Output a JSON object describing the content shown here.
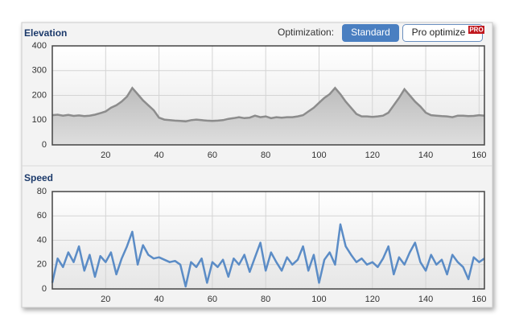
{
  "controls": {
    "label": "Optimization:",
    "standard": "Standard",
    "pro": "Pro optimize",
    "badge": "PRO"
  },
  "chart_data": [
    {
      "type": "area",
      "title": "Elevation",
      "color": "#8c8c8c",
      "fill": "#c4c4c4",
      "x": [
        0,
        2,
        4,
        6,
        8,
        10,
        12,
        14,
        16,
        18,
        20,
        22,
        24,
        26,
        28,
        30,
        32,
        34,
        36,
        38,
        40,
        42,
        44,
        46,
        48,
        50,
        52,
        54,
        56,
        58,
        60,
        62,
        64,
        66,
        68,
        70,
        72,
        74,
        76,
        78,
        80,
        82,
        84,
        86,
        88,
        90,
        92,
        94,
        96,
        98,
        100,
        102,
        104,
        106,
        108,
        110,
        112,
        114,
        116,
        118,
        120,
        122,
        124,
        126,
        128,
        130,
        132,
        134,
        136,
        138,
        140,
        142,
        144,
        146,
        148,
        150,
        152,
        154,
        156,
        158,
        160,
        162
      ],
      "values": [
        120,
        122,
        118,
        121,
        117,
        119,
        116,
        118,
        122,
        128,
        135,
        150,
        160,
        175,
        195,
        230,
        205,
        180,
        160,
        140,
        110,
        102,
        100,
        98,
        97,
        95,
        100,
        102,
        100,
        98,
        97,
        98,
        100,
        105,
        108,
        112,
        108,
        110,
        118,
        112,
        115,
        108,
        112,
        110,
        112,
        112,
        115,
        120,
        135,
        150,
        170,
        190,
        205,
        230,
        205,
        175,
        150,
        125,
        115,
        115,
        113,
        115,
        118,
        130,
        160,
        190,
        225,
        200,
        175,
        155,
        130,
        120,
        118,
        116,
        115,
        112,
        118,
        118,
        116,
        117,
        120,
        118
      ],
      "xlim": [
        0,
        162
      ],
      "ylim": [
        0,
        400
      ],
      "xticks": [
        20,
        40,
        60,
        80,
        100,
        120,
        140,
        160
      ],
      "yticks": [
        0,
        100,
        200,
        300,
        400
      ],
      "grid": true
    },
    {
      "type": "line",
      "title": "Speed",
      "color": "#5b8cc6",
      "x": [
        0,
        2,
        4,
        6,
        8,
        10,
        12,
        14,
        16,
        18,
        20,
        22,
        24,
        26,
        28,
        30,
        32,
        34,
        36,
        38,
        40,
        42,
        44,
        46,
        48,
        50,
        52,
        54,
        56,
        58,
        60,
        62,
        64,
        66,
        68,
        70,
        72,
        74,
        76,
        78,
        80,
        82,
        84,
        86,
        88,
        90,
        92,
        94,
        96,
        98,
        100,
        102,
        104,
        106,
        108,
        110,
        112,
        114,
        116,
        118,
        120,
        122,
        124,
        126,
        128,
        130,
        132,
        134,
        136,
        138,
        140,
        142,
        144,
        146,
        148,
        150,
        152,
        154,
        156,
        158,
        160,
        162
      ],
      "values": [
        5,
        25,
        18,
        30,
        22,
        35,
        15,
        28,
        10,
        27,
        22,
        30,
        12,
        25,
        35,
        47,
        20,
        36,
        28,
        25,
        26,
        24,
        22,
        23,
        20,
        2,
        22,
        18,
        25,
        5,
        22,
        18,
        24,
        10,
        25,
        20,
        28,
        14,
        26,
        38,
        15,
        30,
        22,
        15,
        26,
        20,
        24,
        35,
        15,
        28,
        5,
        24,
        30,
        20,
        53,
        35,
        28,
        22,
        25,
        20,
        22,
        18,
        25,
        35,
        12,
        26,
        20,
        30,
        38,
        22,
        15,
        28,
        20,
        24,
        12,
        28,
        22,
        18,
        8,
        26,
        22,
        25
      ],
      "xlim": [
        0,
        162
      ],
      "ylim": [
        0,
        80
      ],
      "xticks": [
        20,
        40,
        60,
        80,
        100,
        120,
        140,
        160
      ],
      "yticks": [
        0,
        20,
        40,
        60,
        80
      ],
      "grid": true
    }
  ]
}
